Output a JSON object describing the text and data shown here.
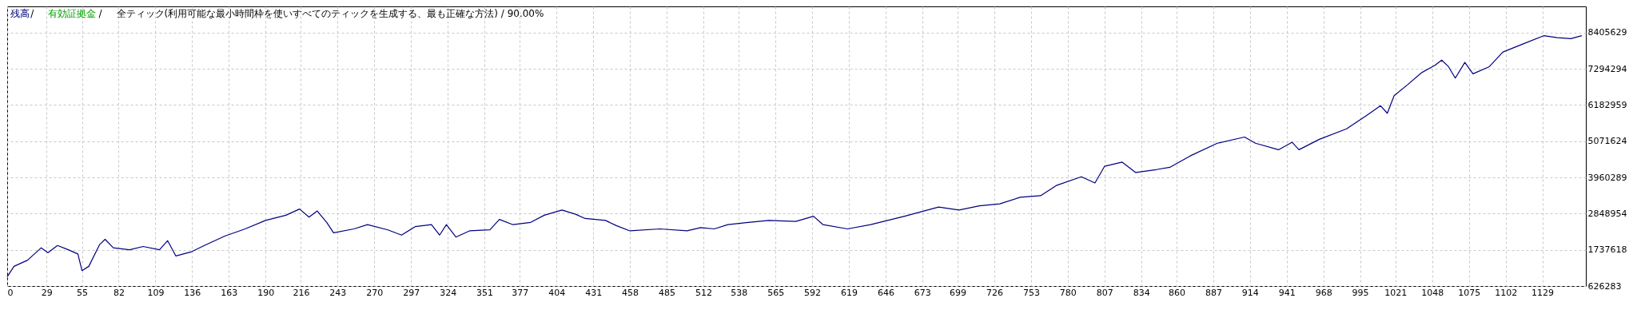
{
  "chart_data": {
    "type": "line",
    "title": "全ティック(利用可能な最小時間枠を使いすべてのティックを生成する、最も正確な方法) / 90.00%",
    "x": [
      0,
      5,
      15,
      25,
      30,
      37,
      45,
      52,
      55,
      60,
      68,
      72,
      78,
      90,
      100,
      112,
      118,
      124,
      135,
      145,
      160,
      175,
      190,
      205,
      215,
      222,
      228,
      235,
      240,
      255,
      265,
      280,
      290,
      300,
      312,
      318,
      323,
      330,
      340,
      355,
      362,
      372,
      385,
      395,
      408,
      418,
      425,
      440,
      448,
      458,
      480,
      500,
      510,
      520,
      530,
      545,
      560,
      580,
      593,
      600,
      618,
      635,
      660,
      685,
      700,
      715,
      730,
      745,
      760,
      772,
      790,
      800,
      807,
      820,
      830,
      845,
      855,
      870,
      890,
      910,
      918,
      935,
      945,
      950,
      965,
      985,
      1000,
      1010,
      1015,
      1020,
      1030,
      1040,
      1050,
      1055,
      1060,
      1065,
      1072,
      1078,
      1090,
      1100,
      1115,
      1130,
      1140,
      1150,
      1158
    ],
    "series": [
      {
        "name": "残高",
        "color": "#000080",
        "values": [
          910000,
          1230000,
          1420000,
          1800000,
          1650000,
          1870000,
          1740000,
          1610000,
          1100000,
          1230000,
          1900000,
          2060000,
          1800000,
          1740000,
          1840000,
          1740000,
          2020000,
          1550000,
          1670000,
          1870000,
          2160000,
          2380000,
          2640000,
          2800000,
          2990000,
          2740000,
          2930000,
          2580000,
          2260000,
          2380000,
          2510000,
          2350000,
          2190000,
          2450000,
          2510000,
          2190000,
          2510000,
          2130000,
          2320000,
          2350000,
          2670000,
          2510000,
          2580000,
          2800000,
          2960000,
          2830000,
          2700000,
          2640000,
          2480000,
          2320000,
          2380000,
          2320000,
          2420000,
          2380000,
          2510000,
          2580000,
          2640000,
          2610000,
          2770000,
          2510000,
          2380000,
          2510000,
          2770000,
          3050000,
          2960000,
          3090000,
          3150000,
          3350000,
          3400000,
          3720000,
          3980000,
          3790000,
          4300000,
          4430000,
          4110000,
          4200000,
          4270000,
          4620000,
          5010000,
          5200000,
          5010000,
          4810000,
          5040000,
          4810000,
          5130000,
          5450000,
          5870000,
          6160000,
          5930000,
          6470000,
          6810000,
          7170000,
          7400000,
          7560000,
          7360000,
          7010000,
          7490000,
          7140000,
          7360000,
          7810000,
          8060000,
          8310000,
          8250000,
          8220000,
          8310000
        ]
      },
      {
        "name": "有効証拠金",
        "color": "#00a000",
        "values": [
          null,
          null,
          null,
          null,
          null,
          null,
          null,
          null,
          null,
          null,
          null,
          null,
          null,
          null,
          null,
          null,
          null,
          null,
          null,
          null,
          null,
          null,
          null,
          null,
          null,
          null,
          null,
          null,
          null,
          null,
          null,
          null,
          null,
          null,
          null,
          null,
          null,
          null,
          null,
          null,
          null,
          null,
          null,
          null,
          null,
          null,
          null,
          null,
          null,
          null,
          null,
          null,
          null,
          null,
          null,
          null,
          null,
          null,
          null,
          null,
          null,
          null,
          null,
          null,
          null,
          null,
          null,
          null,
          null,
          null,
          null,
          null,
          null,
          null,
          null,
          null,
          null,
          null,
          null,
          null,
          null,
          null,
          null,
          null,
          null,
          null,
          null,
          null,
          null,
          null,
          null,
          null,
          null,
          null,
          null,
          null,
          null,
          null,
          null,
          null,
          null,
          null,
          null,
          null,
          null
        ]
      }
    ],
    "xlim": [
      0,
      1161
    ],
    "xticks": [
      0,
      29,
      55,
      82,
      109,
      136,
      163,
      190,
      216,
      243,
      270,
      297,
      324,
      351,
      377,
      404,
      431,
      458,
      485,
      512,
      538,
      565,
      592,
      619,
      646,
      673,
      699,
      726,
      753,
      780,
      807,
      834,
      860,
      887,
      914,
      941,
      968,
      995,
      1021,
      1048,
      1075,
      1102,
      1129
    ],
    "ylim": [
      626283,
      9210000
    ],
    "yticks": [
      626283,
      1737618,
      2848954,
      3960289,
      5071624,
      6182959,
      7294294,
      8405629
    ],
    "annotations": [
      "/",
      "/"
    ],
    "grid": true,
    "legend": "top left",
    "line_style": "solid",
    "marker": "none"
  }
}
